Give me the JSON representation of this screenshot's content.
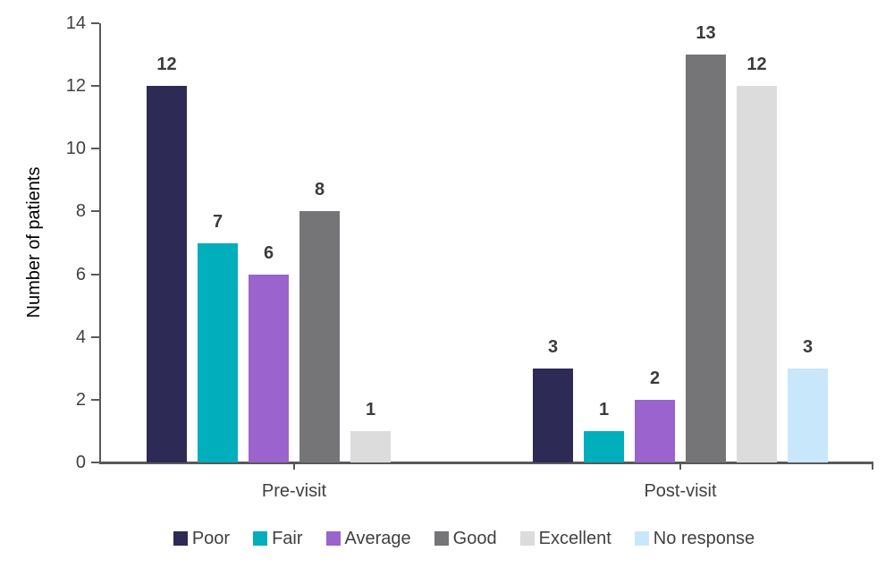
{
  "chart_data": {
    "type": "bar",
    "title": "",
    "xlabel": "",
    "ylabel": "Number of patients",
    "ylim": [
      0,
      14
    ],
    "yticks": [
      0,
      2,
      4,
      6,
      8,
      10,
      12,
      14
    ],
    "categories": [
      "Pre-visit",
      "Post-visit"
    ],
    "series": [
      {
        "name": "Poor",
        "color": "#2d2a55",
        "values": [
          12,
          3
        ]
      },
      {
        "name": "Fair",
        "color": "#00aebc",
        "values": [
          7,
          1
        ]
      },
      {
        "name": "Average",
        "color": "#9a63cd",
        "values": [
          6,
          2
        ]
      },
      {
        "name": "Good",
        "color": "#757578",
        "values": [
          8,
          13
        ]
      },
      {
        "name": "Excellent",
        "color": "#dcdcdd",
        "values": [
          1,
          12
        ]
      },
      {
        "name": "No response",
        "color": "#c9e7fa",
        "values": [
          0,
          3
        ]
      }
    ],
    "value_labels": true,
    "hide_zero_bars": true,
    "grid": false,
    "legend_position": "bottom",
    "axis_color": "#58595b",
    "tick_text_color": "#414042",
    "value_label_color": "#3b3b3d",
    "background_color": "#ffffff"
  }
}
